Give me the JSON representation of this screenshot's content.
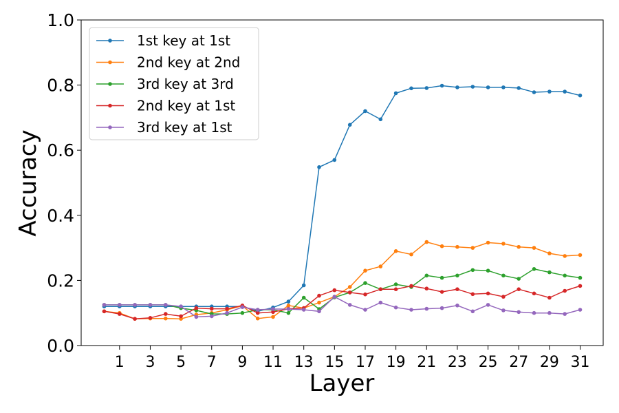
{
  "chart_data": {
    "type": "line",
    "xlabel": "Layer",
    "ylabel": "Accuracy",
    "xlim": [
      -1.5,
      32.5
    ],
    "ylim": [
      0.0,
      1.0
    ],
    "xticks": [
      1,
      3,
      5,
      7,
      9,
      11,
      13,
      15,
      17,
      19,
      21,
      23,
      25,
      27,
      29,
      31
    ],
    "yticks": [
      0.0,
      0.2,
      0.4,
      0.6,
      0.8,
      1.0
    ],
    "ytick_labels": [
      "0.0",
      "0.2",
      "0.4",
      "0.6",
      "0.8",
      "1.0"
    ],
    "grid": false,
    "legend": "top-left",
    "x": [
      0,
      1,
      2,
      3,
      4,
      5,
      6,
      7,
      8,
      9,
      10,
      11,
      12,
      13,
      14,
      15,
      16,
      17,
      18,
      19,
      20,
      21,
      22,
      23,
      24,
      25,
      26,
      27,
      28,
      29,
      30,
      31
    ],
    "series": [
      {
        "name": "1st key at 1st",
        "color": "#1f77b4",
        "values": [
          0.12,
          0.12,
          0.12,
          0.12,
          0.12,
          0.12,
          0.12,
          0.12,
          0.12,
          0.12,
          0.105,
          0.117,
          0.135,
          0.185,
          0.548,
          0.57,
          0.678,
          0.72,
          0.695,
          0.775,
          0.79,
          0.791,
          0.798,
          0.793,
          0.795,
          0.793,
          0.793,
          0.791,
          0.778,
          0.78,
          0.78,
          0.768
        ]
      },
      {
        "name": "2nd key at 2nd",
        "color": "#ff7f0e",
        "values": [
          0.105,
          0.1,
          0.082,
          0.083,
          0.083,
          0.082,
          0.095,
          0.1,
          0.11,
          0.122,
          0.083,
          0.088,
          0.123,
          0.115,
          0.132,
          0.15,
          0.18,
          0.23,
          0.243,
          0.29,
          0.28,
          0.318,
          0.305,
          0.303,
          0.3,
          0.316,
          0.313,
          0.303,
          0.3,
          0.283,
          0.275,
          0.278
        ]
      },
      {
        "name": "3rd key at 3rd",
        "color": "#2ca02c",
        "values": [
          0.125,
          0.125,
          0.125,
          0.125,
          0.125,
          0.115,
          0.108,
          0.097,
          0.097,
          0.1,
          0.11,
          0.11,
          0.1,
          0.147,
          0.112,
          0.148,
          0.163,
          0.192,
          0.173,
          0.188,
          0.18,
          0.215,
          0.208,
          0.215,
          0.232,
          0.23,
          0.215,
          0.205,
          0.235,
          0.225,
          0.215,
          0.208
        ]
      },
      {
        "name": "2nd key at 1st",
        "color": "#d62728",
        "values": [
          0.105,
          0.097,
          0.082,
          0.085,
          0.097,
          0.09,
          0.115,
          0.113,
          0.113,
          0.123,
          0.1,
          0.103,
          0.113,
          0.115,
          0.153,
          0.17,
          0.163,
          0.157,
          0.173,
          0.173,
          0.183,
          0.175,
          0.165,
          0.173,
          0.158,
          0.16,
          0.15,
          0.173,
          0.16,
          0.147,
          0.168,
          0.183
        ]
      },
      {
        "name": "3rd key at 1st",
        "color": "#9467bd",
        "values": [
          0.125,
          0.125,
          0.125,
          0.125,
          0.125,
          0.12,
          0.088,
          0.09,
          0.1,
          0.118,
          0.11,
          0.112,
          0.112,
          0.11,
          0.105,
          0.15,
          0.125,
          0.11,
          0.132,
          0.117,
          0.11,
          0.113,
          0.115,
          0.123,
          0.105,
          0.125,
          0.108,
          0.103,
          0.1,
          0.1,
          0.097,
          0.11
        ]
      }
    ]
  }
}
